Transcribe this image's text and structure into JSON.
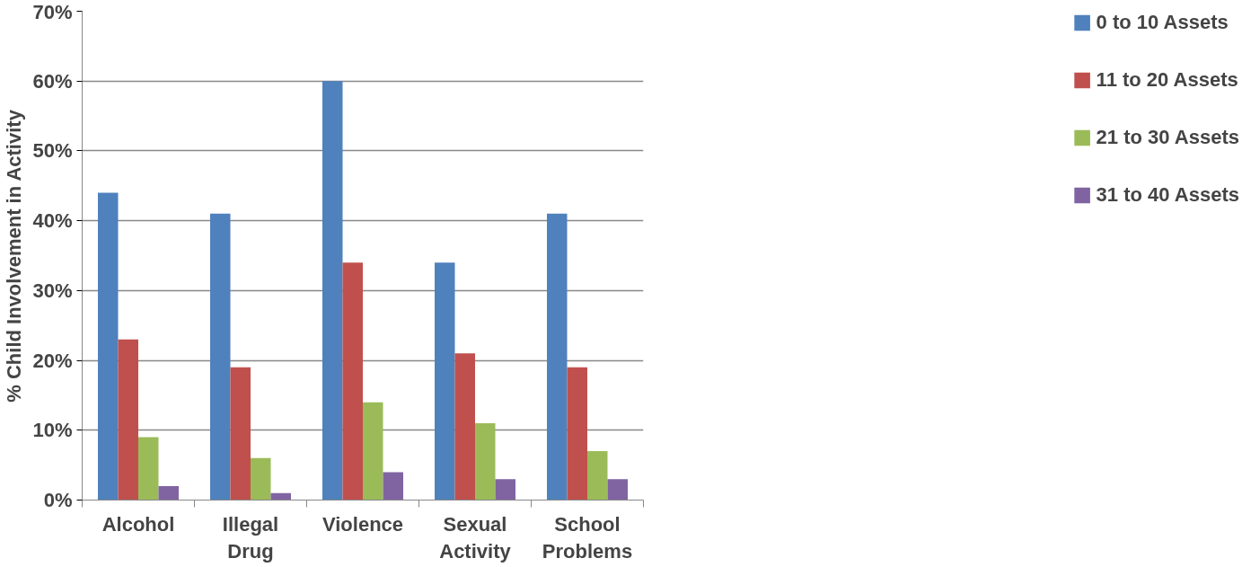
{
  "chart_data": {
    "type": "bar",
    "ylabel": "% Child Involvement in Activity",
    "categories": [
      "Alcohol",
      "Illegal\nDrug",
      "Violence",
      "Sexual\nActivity",
      "School\nProblems"
    ],
    "series": [
      {
        "name": "0 to 10 Assets",
        "color": "#4f81bd",
        "values": [
          44,
          41,
          60,
          34,
          41
        ]
      },
      {
        "name": "11 to 20 Assets",
        "color": "#c0504d",
        "values": [
          23,
          19,
          34,
          21,
          19
        ]
      },
      {
        "name": "21 to 30 Assets",
        "color": "#9bbb59",
        "values": [
          9,
          6,
          14,
          11,
          7
        ]
      },
      {
        "name": "31 to 40 Assets",
        "color": "#8064a2",
        "values": [
          2,
          1,
          4,
          3,
          3
        ]
      }
    ],
    "ylim": [
      0,
      70
    ],
    "yticks": [
      {
        "value": 0,
        "label": "0%"
      },
      {
        "value": 10,
        "label": "10%"
      },
      {
        "value": 20,
        "label": "20%"
      },
      {
        "value": 30,
        "label": "30%"
      },
      {
        "value": 40,
        "label": "40%"
      },
      {
        "value": 50,
        "label": "50%"
      },
      {
        "value": 60,
        "label": "60%"
      },
      {
        "value": 70,
        "label": "70%"
      }
    ],
    "grid": "y",
    "legend": "right"
  }
}
